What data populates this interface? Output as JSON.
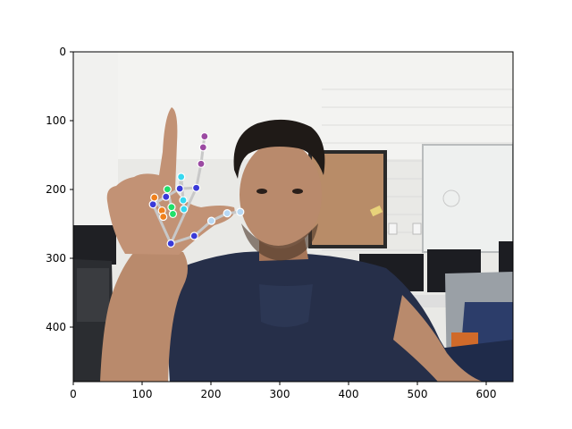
{
  "figure": {
    "x_ticks": [
      "0",
      "100",
      "200",
      "300",
      "400",
      "500",
      "600"
    ],
    "y_ticks": [
      "0",
      "100",
      "200",
      "300",
      "400"
    ]
  },
  "photo": {
    "subject": "person-holding-up-hand-with-landmark-overlay",
    "colors": {
      "wall": "#e6e6e3",
      "ceiling": "#f4f4f2",
      "shirt": "#262f49",
      "skin": "#b98a6c",
      "hair": "#1f1a17",
      "corkboard": "#b88c68",
      "whiteboard": "#eef0ef",
      "monitor": "#1c1d22",
      "chair": "#9aa0a6"
    }
  },
  "hand_landmarks": {
    "description_units": "image pixel coordinates",
    "points": [
      {
        "id": 0,
        "x": 142,
        "y": 279,
        "color": "#3a3ad8"
      },
      {
        "id": 1,
        "x": 176,
        "y": 268,
        "color": "#3a3ad8"
      },
      {
        "id": 2,
        "x": 201,
        "y": 246,
        "color": "#b7d8f4"
      },
      {
        "id": 3,
        "x": 224,
        "y": 235,
        "color": "#b7d8f4"
      },
      {
        "id": 4,
        "x": 243,
        "y": 233,
        "color": "#b7d8f4"
      },
      {
        "id": 5,
        "x": 179,
        "y": 198,
        "color": "#3a3ad8"
      },
      {
        "id": 6,
        "x": 186,
        "y": 163,
        "color": "#9b4aa2"
      },
      {
        "id": 7,
        "x": 189,
        "y": 139,
        "color": "#9b4aa2"
      },
      {
        "id": 8,
        "x": 191,
        "y": 123,
        "color": "#9b4aa2"
      },
      {
        "id": 9,
        "x": 155,
        "y": 199,
        "color": "#3a3ad8"
      },
      {
        "id": 10,
        "x": 157,
        "y": 182,
        "color": "#36d8f0"
      },
      {
        "id": 11,
        "x": 160,
        "y": 216,
        "color": "#36d8f0"
      },
      {
        "id": 12,
        "x": 161,
        "y": 229,
        "color": "#36d8f0"
      },
      {
        "id": 13,
        "x": 135,
        "y": 211,
        "color": "#3a3ad8"
      },
      {
        "id": 14,
        "x": 137,
        "y": 200,
        "color": "#20e06a"
      },
      {
        "id": 15,
        "x": 143,
        "y": 226,
        "color": "#20e06a"
      },
      {
        "id": 16,
        "x": 145,
        "y": 236,
        "color": "#20e06a"
      },
      {
        "id": 17,
        "x": 116,
        "y": 222,
        "color": "#3a3ad8"
      },
      {
        "id": 18,
        "x": 118,
        "y": 212,
        "color": "#f0801c"
      },
      {
        "id": 19,
        "x": 129,
        "y": 231,
        "color": "#f0801c"
      },
      {
        "id": 20,
        "x": 131,
        "y": 240,
        "color": "#f0801c"
      }
    ],
    "connections": [
      [
        0,
        1
      ],
      [
        1,
        2
      ],
      [
        2,
        3
      ],
      [
        3,
        4
      ],
      [
        0,
        5
      ],
      [
        5,
        6
      ],
      [
        6,
        7
      ],
      [
        7,
        8
      ],
      [
        5,
        9
      ],
      [
        9,
        10
      ],
      [
        10,
        11
      ],
      [
        11,
        12
      ],
      [
        9,
        13
      ],
      [
        13,
        14
      ],
      [
        14,
        15
      ],
      [
        15,
        16
      ],
      [
        13,
        17
      ],
      [
        0,
        17
      ],
      [
        17,
        18
      ],
      [
        18,
        19
      ],
      [
        19,
        20
      ]
    ],
    "line_color": "#c8c8c8"
  }
}
